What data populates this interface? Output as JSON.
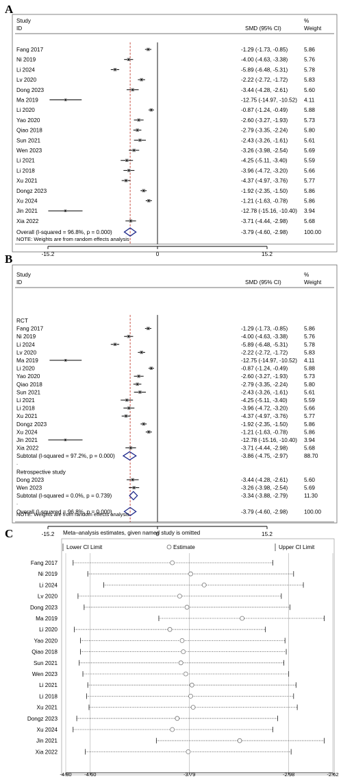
{
  "chart_data": [
    {
      "panel": "A",
      "type": "forest",
      "header": {
        "study": "Study",
        "id": "ID",
        "smd": "SMD (95% CI)",
        "pct": "%",
        "weight": "Weight"
      },
      "rows": [
        {
          "label": "Fang 2017",
          "est": -1.29,
          "lo": -1.73,
          "hi": -0.85,
          "ci": "-1.29 (-1.73, -0.85)",
          "weight": "5.86"
        },
        {
          "label": "Ni 2019",
          "est": -4.0,
          "lo": -4.63,
          "hi": -3.38,
          "ci": "-4.00 (-4.63, -3.38)",
          "weight": "5.76"
        },
        {
          "label": "Li 2024",
          "est": -5.89,
          "lo": -6.48,
          "hi": -5.31,
          "ci": "-5.89 (-6.48, -5.31)",
          "weight": "5.78"
        },
        {
          "label": "Lv 2020",
          "est": -2.22,
          "lo": -2.72,
          "hi": -1.72,
          "ci": "-2.22 (-2.72, -1.72)",
          "weight": "5.83"
        },
        {
          "label": "Dong 2023",
          "est": -3.44,
          "lo": -4.28,
          "hi": -2.61,
          "ci": "-3.44 (-4.28, -2.61)",
          "weight": "5.60"
        },
        {
          "label": "Ma 2019",
          "est": -12.75,
          "lo": -14.97,
          "hi": -10.52,
          "ci": "-12.75 (-14.97, -10.52)",
          "weight": "4.11"
        },
        {
          "label": "Li 2020",
          "est": -0.87,
          "lo": -1.24,
          "hi": -0.49,
          "ci": "-0.87 (-1.24, -0.49)",
          "weight": "5.88"
        },
        {
          "label": "Yao 2020",
          "est": -2.6,
          "lo": -3.27,
          "hi": -1.93,
          "ci": "-2.60 (-3.27, -1.93)",
          "weight": "5.73"
        },
        {
          "label": "Qiao 2018",
          "est": -2.79,
          "lo": -3.35,
          "hi": -2.24,
          "ci": "-2.79 (-3.35, -2.24)",
          "weight": "5.80"
        },
        {
          "label": "Sun 2021",
          "est": -2.43,
          "lo": -3.26,
          "hi": -1.61,
          "ci": "-2.43 (-3.26, -1.61)",
          "weight": "5.61"
        },
        {
          "label": "Wen 2023",
          "est": -3.26,
          "lo": -3.98,
          "hi": -2.54,
          "ci": "-3.26 (-3.98, -2.54)",
          "weight": "5.69"
        },
        {
          "label": "Li 2021",
          "est": -4.25,
          "lo": -5.11,
          "hi": -3.4,
          "ci": "-4.25 (-5.11, -3.40)",
          "weight": "5.59"
        },
        {
          "label": "Li 2018",
          "est": -3.96,
          "lo": -4.72,
          "hi": -3.2,
          "ci": "-3.96 (-4.72, -3.20)",
          "weight": "5.66"
        },
        {
          "label": "Xu 2021",
          "est": -4.37,
          "lo": -4.97,
          "hi": -3.76,
          "ci": "-4.37 (-4.97, -3.76)",
          "weight": "5.77"
        },
        {
          "label": "Dongz 2023",
          "est": -1.92,
          "lo": -2.35,
          "hi": -1.5,
          "ci": "-1.92 (-2.35, -1.50)",
          "weight": "5.86"
        },
        {
          "label": "Xu 2024",
          "est": -1.21,
          "lo": -1.63,
          "hi": -0.78,
          "ci": "-1.21 (-1.63, -0.78)",
          "weight": "5.86"
        },
        {
          "label": "Jin 2021",
          "est": -12.78,
          "lo": -15.16,
          "hi": -10.4,
          "ci": "-12.78 (-15.16, -10.40)",
          "weight": "3.94"
        },
        {
          "label": "Xia 2022",
          "est": -3.71,
          "lo": -4.44,
          "hi": -2.98,
          "ci": "-3.71 (-4.44, -2.98)",
          "weight": "5.68"
        }
      ],
      "overall": {
        "label": "Overall  (I-squared = 96.8%, p = 0.000)",
        "est": -3.79,
        "lo": -4.6,
        "hi": -2.98,
        "ci": "-3.79 (-4.60, -2.98)",
        "weight": "100.00"
      },
      "note": "NOTE: Weights are from random effects analysis",
      "xticks": [
        "-15.2",
        "0",
        "15.2"
      ],
      "xlim": [
        -15.2,
        15.2
      ]
    },
    {
      "panel": "B",
      "type": "forest",
      "header": {
        "study": "Study",
        "id": "ID",
        "smd": "SMD (95% CI)",
        "pct": "%",
        "weight": "Weight"
      },
      "groups": [
        {
          "name": "RCT",
          "rows": [
            {
              "label": "Fang 2017",
              "est": -1.29,
              "lo": -1.73,
              "hi": -0.85,
              "ci": "-1.29 (-1.73, -0.85)",
              "weight": "5.86"
            },
            {
              "label": "Ni 2019",
              "est": -4.0,
              "lo": -4.63,
              "hi": -3.38,
              "ci": "-4.00 (-4.63, -3.38)",
              "weight": "5.76"
            },
            {
              "label": "Li 2024",
              "est": -5.89,
              "lo": -6.48,
              "hi": -5.31,
              "ci": "-5.89 (-6.48, -5.31)",
              "weight": "5.78"
            },
            {
              "label": "Lv 2020",
              "est": -2.22,
              "lo": -2.72,
              "hi": -1.72,
              "ci": "-2.22 (-2.72, -1.72)",
              "weight": "5.83"
            },
            {
              "label": "Ma 2019",
              "est": -12.75,
              "lo": -14.97,
              "hi": -10.52,
              "ci": "-12.75 (-14.97, -10.52)",
              "weight": "4.11"
            },
            {
              "label": "Li 2020",
              "est": -0.87,
              "lo": -1.24,
              "hi": -0.49,
              "ci": "-0.87 (-1.24, -0.49)",
              "weight": "5.88"
            },
            {
              "label": "Yao 2020",
              "est": -2.6,
              "lo": -3.27,
              "hi": -1.93,
              "ci": "-2.60 (-3.27, -1.93)",
              "weight": "5.73"
            },
            {
              "label": "Qiao 2018",
              "est": -2.79,
              "lo": -3.35,
              "hi": -2.24,
              "ci": "-2.79 (-3.35, -2.24)",
              "weight": "5.80"
            },
            {
              "label": "Sun 2021",
              "est": -2.43,
              "lo": -3.26,
              "hi": -1.61,
              "ci": "-2.43 (-3.26, -1.61)",
              "weight": "5.61"
            },
            {
              "label": "Li 2021",
              "est": -4.25,
              "lo": -5.11,
              "hi": -3.4,
              "ci": "-4.25 (-5.11, -3.40)",
              "weight": "5.59"
            },
            {
              "label": "Li 2018",
              "est": -3.96,
              "lo": -4.72,
              "hi": -3.2,
              "ci": "-3.96 (-4.72, -3.20)",
              "weight": "5.66"
            },
            {
              "label": "Xu 2021",
              "est": -4.37,
              "lo": -4.97,
              "hi": -3.76,
              "ci": "-4.37 (-4.97, -3.76)",
              "weight": "5.77"
            },
            {
              "label": "Dongz 2023",
              "est": -1.92,
              "lo": -2.35,
              "hi": -1.5,
              "ci": "-1.92 (-2.35, -1.50)",
              "weight": "5.86"
            },
            {
              "label": "Xu 2024",
              "est": -1.21,
              "lo": -1.63,
              "hi": -0.78,
              "ci": "-1.21 (-1.63, -0.78)",
              "weight": "5.86"
            },
            {
              "label": "Jin 2021",
              "est": -12.78,
              "lo": -15.16,
              "hi": -10.4,
              "ci": "-12.78 (-15.16, -10.40)",
              "weight": "3.94"
            },
            {
              "label": "Xia 2022",
              "est": -3.71,
              "lo": -4.44,
              "hi": -2.98,
              "ci": "-3.71 (-4.44, -2.98)",
              "weight": "5.68"
            }
          ],
          "subtotal": {
            "label": "Subtotal  (I-squared = 97.2%, p = 0.000)",
            "est": -3.86,
            "lo": -4.75,
            "hi": -2.97,
            "ci": "-3.86 (-4.75, -2.97)",
            "weight": "88.70"
          }
        },
        {
          "name": "Retrospective study",
          "rows": [
            {
              "label": "Dong 2023",
              "est": -3.44,
              "lo": -4.28,
              "hi": -2.61,
              "ci": "-3.44 (-4.28, -2.61)",
              "weight": "5.60"
            },
            {
              "label": "Wen 2023",
              "est": -3.26,
              "lo": -3.98,
              "hi": -2.54,
              "ci": "-3.26 (-3.98, -2.54)",
              "weight": "5.69"
            }
          ],
          "subtotal": {
            "label": "Subtotal  (I-squared = 0.0%, p = 0.739)",
            "est": -3.34,
            "lo": -3.88,
            "hi": -2.79,
            "ci": "-3.34 (-3.88, -2.79)",
            "weight": "11.30"
          }
        }
      ],
      "overall": {
        "label": "Overall  (I-squared = 96.8%, p = 0.000)",
        "est": -3.79,
        "lo": -4.6,
        "hi": -2.98,
        "ci": "-3.79 (-4.60, -2.98)",
        "weight": "100.00"
      },
      "note": "NOTE: Weights are from random effects analysis",
      "xticks": [
        "-15.2",
        "0",
        "15.2"
      ],
      "xlim": [
        -15.2,
        15.2
      ]
    },
    {
      "panel": "C",
      "type": "sensitivity",
      "title": "Meta–analysis estimates, given named study is omitted",
      "legend": [
        "Lower CI Limit",
        "Estimate",
        "Upper CI Limit"
      ],
      "rows": [
        {
          "label": "Fang 2017",
          "est": -3.93,
          "lo": -4.74,
          "hi": -3.11
        },
        {
          "label": "Ni 2019",
          "est": -3.78,
          "lo": -4.62,
          "hi": -2.94
        },
        {
          "label": "Li 2024",
          "est": -3.67,
          "lo": -4.49,
          "hi": -2.86
        },
        {
          "label": "Lv 2020",
          "est": -3.87,
          "lo": -4.7,
          "hi": -3.04
        },
        {
          "label": "Dong 2023",
          "est": -3.81,
          "lo": -4.65,
          "hi": -2.97
        },
        {
          "label": "Ma 2019",
          "est": -3.36,
          "lo": -4.04,
          "hi": -2.69
        },
        {
          "label": "Li 2020",
          "est": -3.95,
          "lo": -4.73,
          "hi": -3.17
        },
        {
          "label": "Yao 2020",
          "est": -3.85,
          "lo": -4.68,
          "hi": -3.01
        },
        {
          "label": "Qiao 2018",
          "est": -3.84,
          "lo": -4.68,
          "hi": -3.0
        },
        {
          "label": "Sun 2021",
          "est": -3.86,
          "lo": -4.69,
          "hi": -3.02
        },
        {
          "label": "Wen 2023",
          "est": -3.82,
          "lo": -4.66,
          "hi": -2.98
        },
        {
          "label": "Li 2021",
          "est": -3.77,
          "lo": -4.62,
          "hi": -2.92
        },
        {
          "label": "Li 2018",
          "est": -3.78,
          "lo": -4.63,
          "hi": -2.94
        },
        {
          "label": "Xu 2021",
          "est": -3.76,
          "lo": -4.61,
          "hi": -2.91
        },
        {
          "label": "Dongz 2023",
          "est": -3.89,
          "lo": -4.71,
          "hi": -3.07
        },
        {
          "label": "Xu 2024",
          "est": -3.93,
          "lo": -4.74,
          "hi": -3.11
        },
        {
          "label": "Jin 2021",
          "est": -3.38,
          "lo": -4.06,
          "hi": -2.69
        },
        {
          "label": "Xia 2022",
          "est": -3.8,
          "lo": -4.64,
          "hi": -2.96
        }
      ],
      "xticks": [
        -4.8,
        -4.6,
        -3.79,
        -2.98,
        -2.62
      ],
      "xtick_labels": [
        "-4.80",
        "-4.60",
        "-3.79",
        "-2.98",
        "-2.62"
      ],
      "xlim": [
        -4.8,
        -2.62
      ]
    }
  ]
}
